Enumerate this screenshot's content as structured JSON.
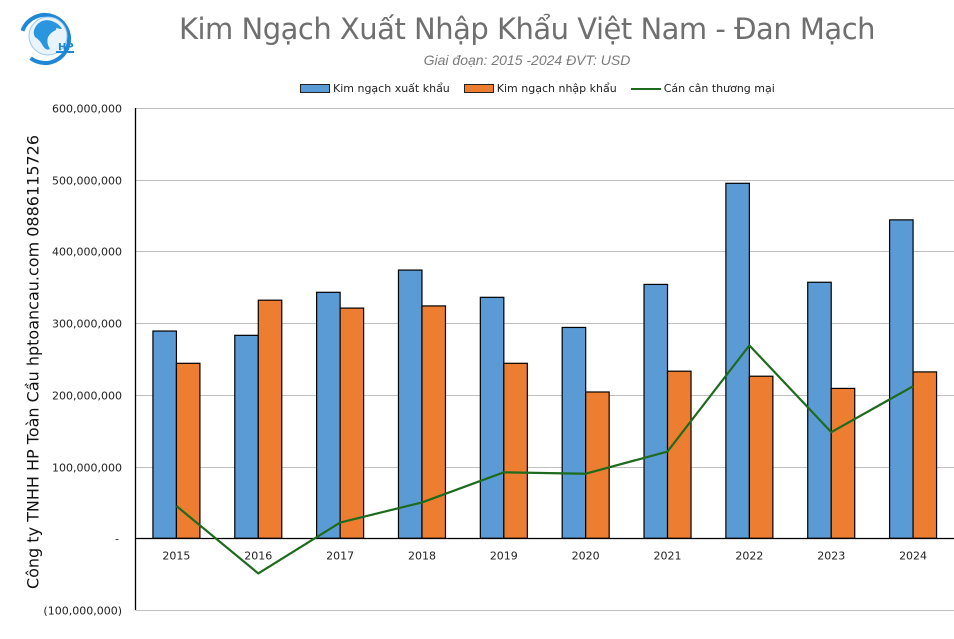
{
  "header": {
    "title": "Kim Ngạch Xuất Nhập Khẩu Việt Nam - Đan Mạch",
    "subtitle": "Giai đoạn: 2015 -2024  ĐVT: USD",
    "logo_text": "HP"
  },
  "side_text": "Công ty TNHH HP Toàn Cầu hptoancau.com 0886115726",
  "legend": [
    {
      "label": "Kim ngạch xuất khẩu",
      "type": "bar",
      "color": "#5B9BD5"
    },
    {
      "label": "Kim ngạch nhập khẩu",
      "type": "bar",
      "color": "#ED7D31"
    },
    {
      "label": "Cán cân thương mại",
      "type": "line",
      "color": "#1E6B1E"
    }
  ],
  "colors": {
    "export": "#5B9BD5",
    "import": "#ED7D31",
    "balance": "#1E6B1E",
    "grid": "#BFBFBF",
    "logo": "#1E88D6"
  },
  "chart_data": {
    "type": "bar",
    "title": "Kim Ngạch Xuất Nhập Khẩu Việt Nam - Đan Mạch",
    "subtitle": "Giai đoạn: 2015 -2024  ĐVT: USD",
    "xlabel": "",
    "ylabel": "",
    "categories": [
      "2015",
      "2016",
      "2017",
      "2018",
      "2019",
      "2020",
      "2021",
      "2022",
      "2023",
      "2024"
    ],
    "series": [
      {
        "name": "Kim ngạch xuất khẩu",
        "type": "bar",
        "values": [
          289000000,
          283000000,
          343000000,
          374000000,
          336000000,
          294000000,
          354000000,
          495000000,
          357000000,
          444000000
        ]
      },
      {
        "name": "Kim ngạch nhập khẩu",
        "type": "bar",
        "values": [
          244000000,
          332000000,
          321000000,
          324000000,
          244000000,
          204000000,
          233000000,
          226000000,
          209000000,
          232000000
        ]
      },
      {
        "name": "Cán cân thương mại",
        "type": "line",
        "values": [
          45000000,
          -49000000,
          22000000,
          50000000,
          92000000,
          90000000,
          121000000,
          269000000,
          148000000,
          212000000
        ]
      }
    ],
    "ylim": [
      -100000000,
      600000000
    ],
    "yticks": [
      -100000000,
      0,
      100000000,
      200000000,
      300000000,
      400000000,
      500000000,
      600000000
    ],
    "ytick_labels": [
      "(100,000,000)",
      "-",
      "100,000,000",
      "200,000,000",
      "300,000,000",
      "400,000,000",
      "500,000,000",
      "600,000,000"
    ],
    "grid": true,
    "legend_position": "top"
  }
}
